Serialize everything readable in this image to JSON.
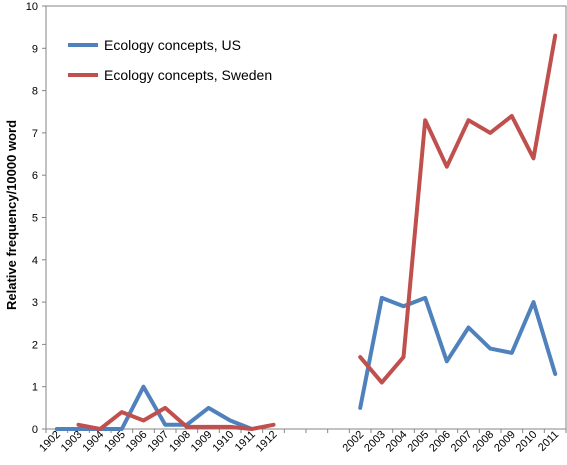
{
  "chart_data": {
    "type": "line",
    "title": "",
    "xlabel": "",
    "ylabel": "Relative frequency/10000 word",
    "ylim": [
      0,
      10
    ],
    "yticks": [
      0,
      1,
      2,
      3,
      4,
      5,
      6,
      7,
      8,
      9,
      10
    ],
    "grid": false,
    "legend_position": "top-left",
    "categories": [
      "1902",
      "1903",
      "1904",
      "1905",
      "1906",
      "1907",
      "1908",
      "1909",
      "1910",
      "1911",
      "1912",
      "",
      "",
      "",
      "2002",
      "2003",
      "2004",
      "2005",
      "2006",
      "2007",
      "2008",
      "2009",
      "2010",
      "2011"
    ],
    "series": [
      {
        "name": "Ecology concepts, US",
        "color": "#4f81bd",
        "values": [
          0,
          0,
          0,
          0,
          1.0,
          0.1,
          0.1,
          0.5,
          0.2,
          0,
          null,
          null,
          null,
          null,
          0.5,
          3.1,
          2.9,
          3.1,
          1.6,
          2.4,
          1.9,
          1.8,
          3.0,
          1.3
        ]
      },
      {
        "name": "Ecology concepts, Sweden",
        "color": "#c0504d",
        "values": [
          null,
          0.1,
          0,
          0.4,
          0.2,
          0.5,
          0.05,
          0.05,
          0.05,
          0,
          0.1,
          null,
          null,
          null,
          1.7,
          1.1,
          1.7,
          7.3,
          6.2,
          7.3,
          7.0,
          7.4,
          6.4,
          9.3
        ]
      }
    ]
  }
}
